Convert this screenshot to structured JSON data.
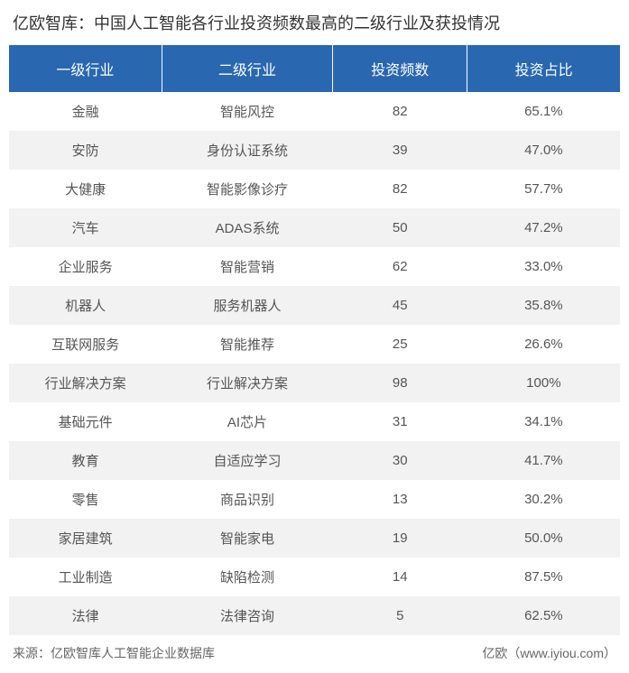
{
  "title": "亿欧智库：中国人工智能各行业投资频数最高的二级行业及获投情况",
  "table": {
    "type": "table",
    "header_bg": "#2967b0",
    "header_text_color": "#ffffff",
    "row_odd_bg": "#ffffff",
    "row_even_bg": "#f2f2f2",
    "text_color": "#555555",
    "title_color": "#333333",
    "title_fontsize": 18,
    "header_fontsize": 16,
    "cell_fontsize": 15,
    "columns": [
      {
        "label": "一级行业",
        "width": "25%"
      },
      {
        "label": "二级行业",
        "width": "28%"
      },
      {
        "label": "投资频数",
        "width": "22%"
      },
      {
        "label": "投资占比",
        "width": "25%"
      }
    ],
    "rows": [
      {
        "c1": "金融",
        "c2": "智能风控",
        "c3": "82",
        "c4": "65.1%"
      },
      {
        "c1": "安防",
        "c2": "身份认证系统",
        "c3": "39",
        "c4": "47.0%"
      },
      {
        "c1": "大健康",
        "c2": "智能影像诊疗",
        "c3": "82",
        "c4": "57.7%"
      },
      {
        "c1": "汽车",
        "c2": "ADAS系统",
        "c3": "50",
        "c4": "47.2%"
      },
      {
        "c1": "企业服务",
        "c2": "智能营销",
        "c3": "62",
        "c4": "33.0%"
      },
      {
        "c1": "机器人",
        "c2": "服务机器人",
        "c3": "45",
        "c4": "35.8%"
      },
      {
        "c1": "互联网服务",
        "c2": "智能推荐",
        "c3": "25",
        "c4": "26.6%"
      },
      {
        "c1": "行业解决方案",
        "c2": "行业解决方案",
        "c3": "98",
        "c4": "100%"
      },
      {
        "c1": "基础元件",
        "c2": "AI芯片",
        "c3": "31",
        "c4": "34.1%"
      },
      {
        "c1": "教育",
        "c2": "自适应学习",
        "c3": "30",
        "c4": "41.7%"
      },
      {
        "c1": "零售",
        "c2": "商品识别",
        "c3": "13",
        "c4": "30.2%"
      },
      {
        "c1": "家居建筑",
        "c2": "智能家电",
        "c3": "19",
        "c4": "50.0%"
      },
      {
        "c1": "工业制造",
        "c2": "缺陷检测",
        "c3": "14",
        "c4": "87.5%"
      },
      {
        "c1": "法律",
        "c2": "法律咨询",
        "c3": "5",
        "c4": "62.5%"
      }
    ]
  },
  "footer": {
    "source": "来源：亿欧智库人工智能企业数据库",
    "brand": "亿欧（www.iyiou.com）",
    "text_color": "#666666",
    "fontsize": 14
  }
}
